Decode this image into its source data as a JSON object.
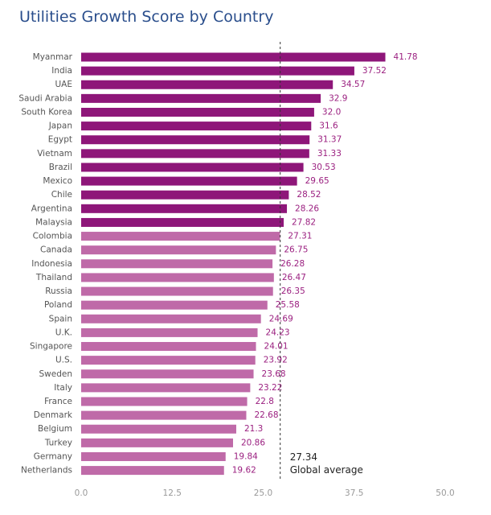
{
  "chart_data": {
    "type": "bar",
    "orientation": "horizontal",
    "title": "Utilities Growth Score by Country",
    "xlabel": "",
    "ylabel": "",
    "xlim": [
      0,
      50
    ],
    "ticks": [
      "0.0",
      "12.5",
      "25.0",
      "37.5",
      "50.0"
    ],
    "grid": false,
    "categories": [
      "Myanmar",
      "India",
      "UAE",
      "Saudi Arabia",
      "South Korea",
      "Japan",
      "Egypt",
      "Vietnam",
      "Brazil",
      "Mexico",
      "Chile",
      "Argentina",
      "Malaysia",
      "Colombia",
      "Canada",
      "Indonesia",
      "Thailand",
      "Russia",
      "Poland",
      "Spain",
      "U.K.",
      "Singapore",
      "U.S.",
      "Sweden",
      "Italy",
      "France",
      "Denmark",
      "Belgium",
      "Turkey",
      "Germany",
      "Netherlands"
    ],
    "values": [
      41.78,
      37.52,
      34.57,
      32.9,
      32.0,
      31.6,
      31.37,
      31.33,
      30.53,
      29.65,
      28.52,
      28.26,
      27.82,
      27.31,
      26.75,
      26.28,
      26.47,
      26.35,
      25.58,
      24.69,
      24.23,
      24.01,
      23.92,
      23.68,
      23.22,
      22.8,
      22.68,
      21.3,
      20.86,
      19.84,
      19.62
    ],
    "value_labels": [
      "41.78",
      "37.52",
      "34.57",
      "32.9",
      "32.0",
      "31.6",
      "31.37",
      "31.33",
      "30.53",
      "29.65",
      "28.52",
      "28.26",
      "27.82",
      "27.31",
      "26.75",
      "26.28",
      "26.47",
      "26.35",
      "25.58",
      "24.69",
      "24.23",
      "24.01",
      "23.92",
      "23.68",
      "23.22",
      "22.8",
      "22.68",
      "21.3",
      "20.86",
      "19.84",
      "19.62"
    ],
    "reference_line": {
      "value": 27.34,
      "value_label": "27.34",
      "label": "Global average",
      "style": "dashed"
    },
    "colors": {
      "above_average": "#8e1679",
      "below_average": "#bf6aa8",
      "value_label": "#9b2080",
      "title": "#2a4e8c"
    }
  }
}
